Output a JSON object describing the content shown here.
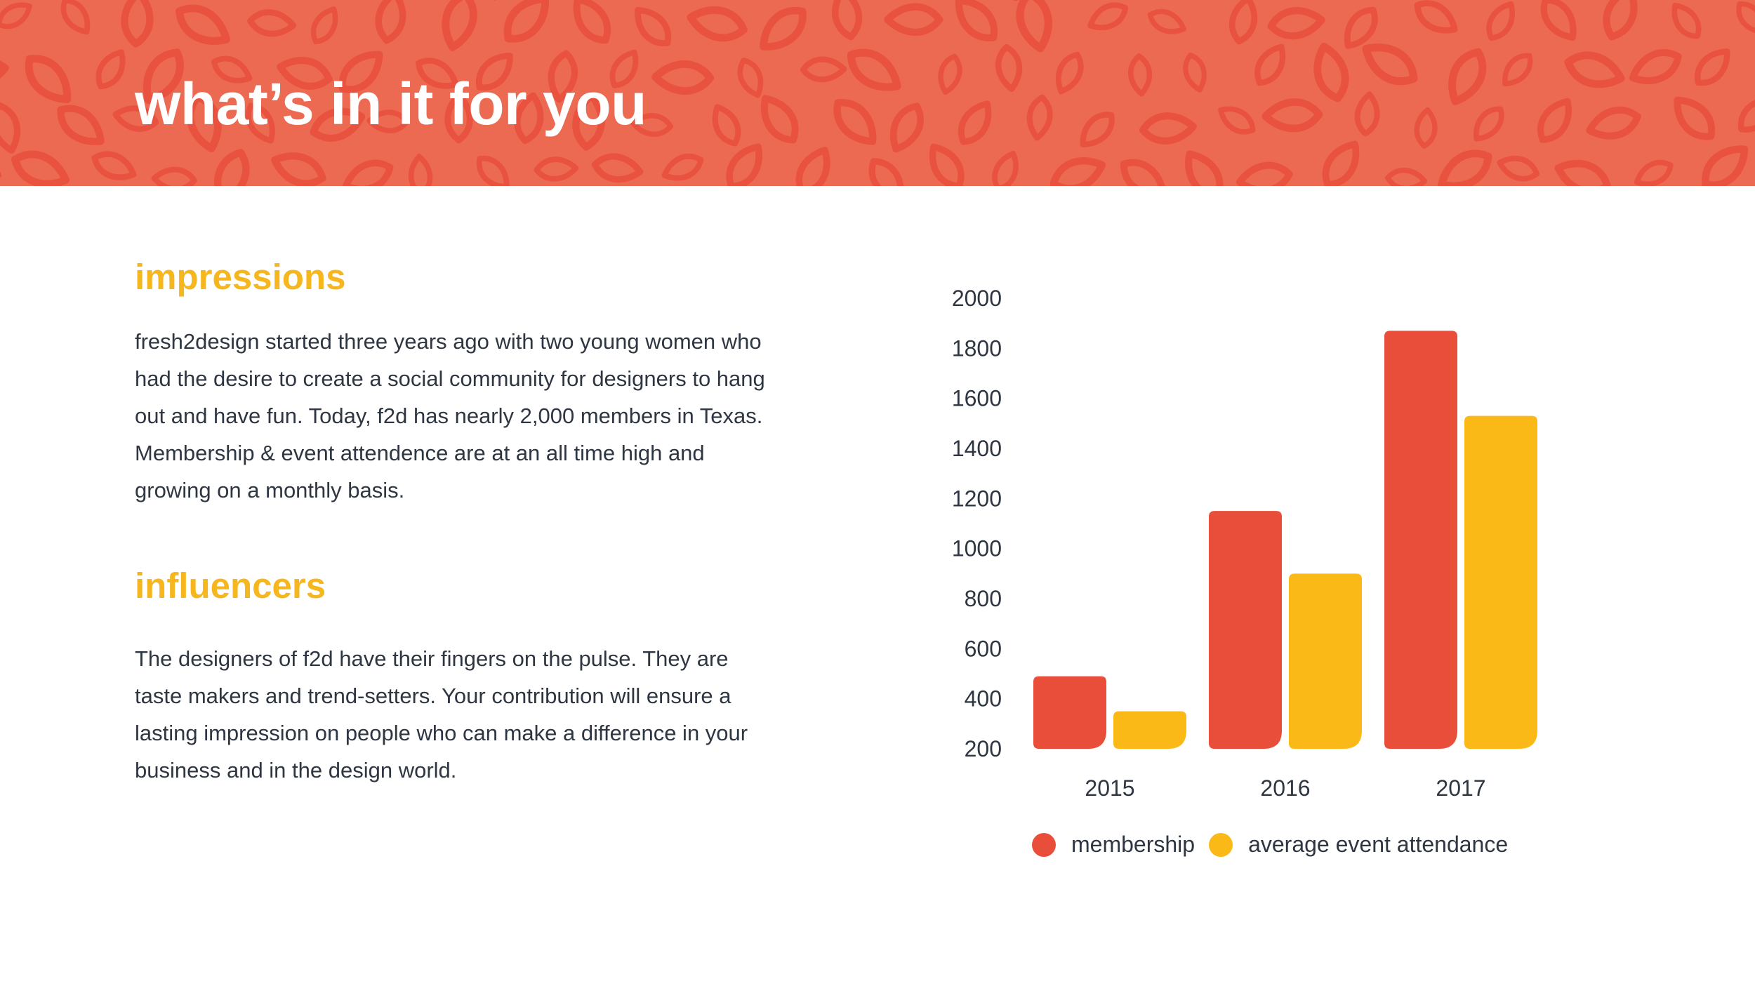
{
  "header": {
    "title": "what’s in it for you"
  },
  "sections": [
    {
      "heading": "impressions",
      "body": "fresh2design started three years ago with two young women who had the desire to create a social community for designers to hang out and have fun. Today, f2d has nearly 2,000 members in Texas. Membership & event attendence are at an all time high and growing on a monthly basis."
    },
    {
      "heading": "influencers",
      "body": "The designers of f2d have their fingers on the pulse. They are taste makers and trend-setters. Your contribution will ensure a lasting impression on people who can make a difference in your business and in the design world."
    }
  ],
  "colors": {
    "header_bg": "#EC6A52",
    "pattern": "#E8523F",
    "heading": "#F6B61E",
    "text": "#2E3642",
    "membership": "#E84E3A",
    "attendance": "#FBB918"
  },
  "chart_data": {
    "type": "bar",
    "categories": [
      "2015",
      "2016",
      "2017"
    ],
    "series": [
      {
        "name": "membership",
        "values": [
          490,
          1150,
          1870
        ],
        "color": "#E84E3A"
      },
      {
        "name": "average event attendance",
        "values": [
          350,
          900,
          1530
        ],
        "color": "#FBB918"
      }
    ],
    "ylim": [
      200,
      2000
    ],
    "yticks": [
      200,
      400,
      600,
      800,
      1000,
      1200,
      1400,
      1600,
      1800,
      2000
    ],
    "grid": false,
    "legend": "bottom"
  }
}
